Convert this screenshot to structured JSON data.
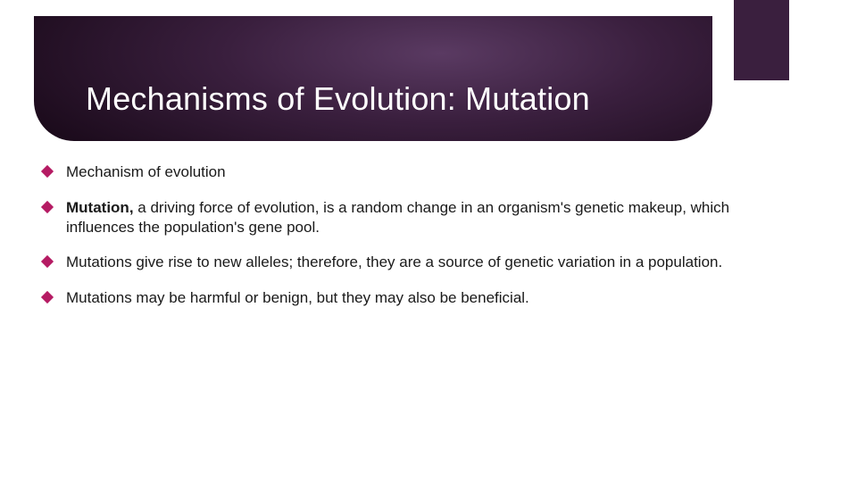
{
  "slide": {
    "banner_gradient": {
      "inner": "#5a3a62",
      "mid": "#3a1f3e",
      "outer": "#1a0a1a"
    },
    "accent_tab_color": "#3a1f3e",
    "bullet_color": "#b51b63",
    "title_color": "#ffffff",
    "text_color": "#1a1a1a",
    "background_color": "#ffffff",
    "title_fontsize": 36,
    "body_fontsize": 17,
    "title": "Mechanisms of Evolution: Mutation",
    "bullets": [
      {
        "prefix": "",
        "bold": "",
        "text": "Mechanism of evolution"
      },
      {
        "prefix": "",
        "bold": "Mutation,",
        "text": " a driving force of evolution, is a random change in an organism's genetic makeup, which influences the population's gene pool."
      },
      {
        "prefix": "",
        "bold": "",
        "text": "Mutations give rise to new alleles; therefore, they are a source of genetic variation in a population."
      },
      {
        "prefix": "",
        "bold": "",
        "text": "Mutations may be harmful or benign, but they may also be beneficial."
      }
    ]
  }
}
